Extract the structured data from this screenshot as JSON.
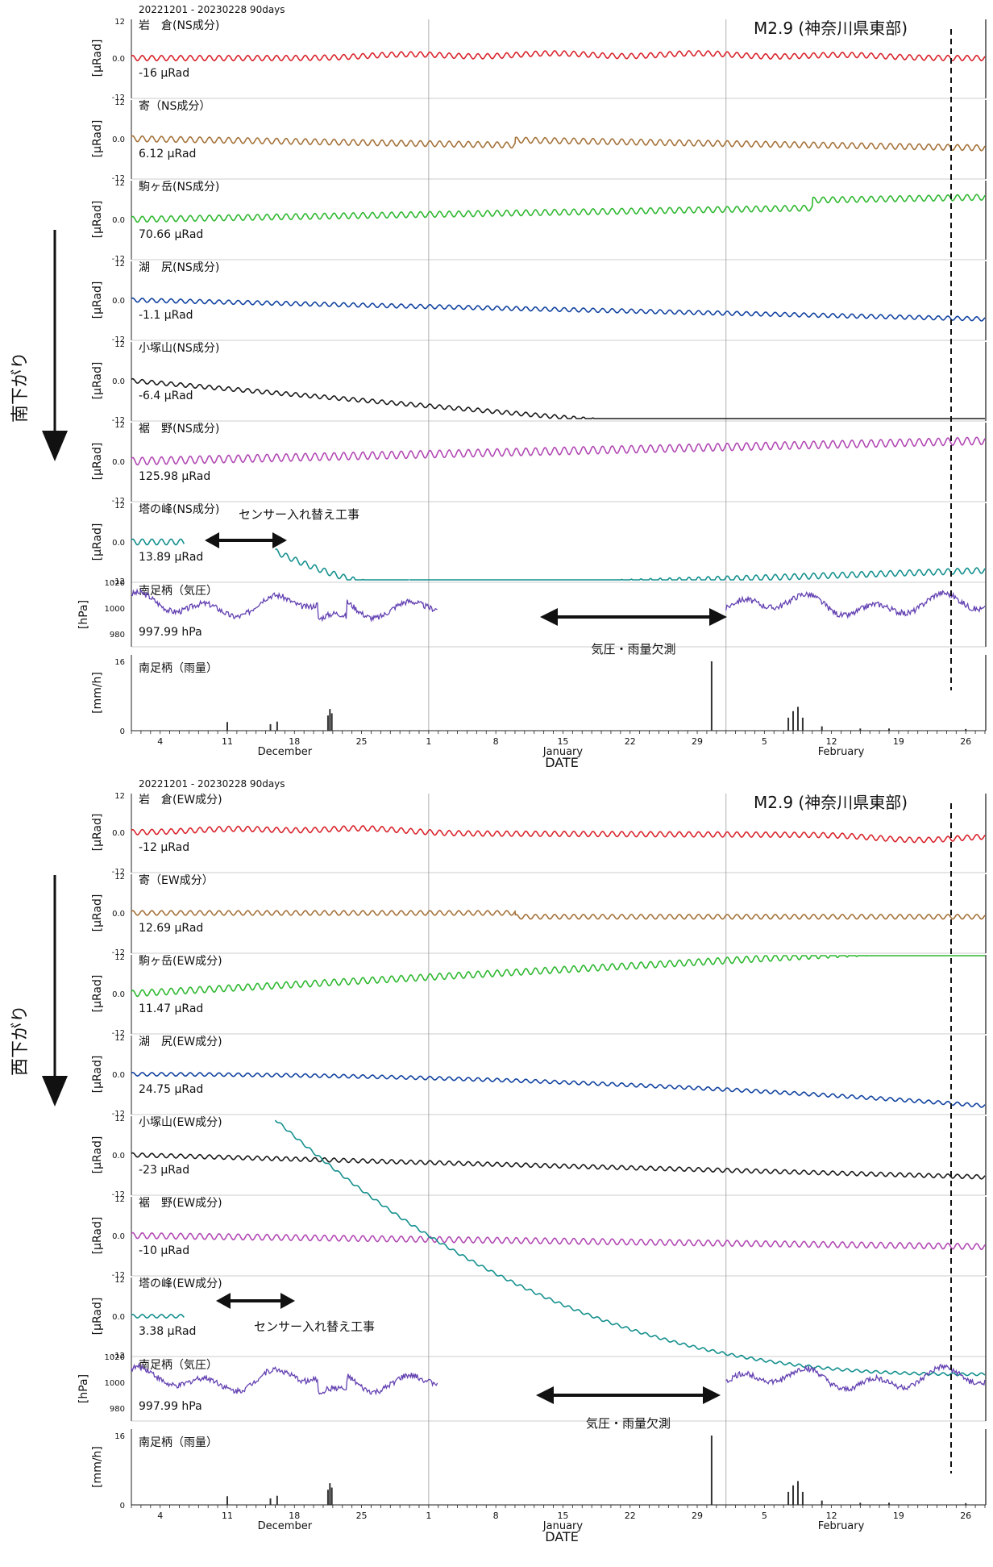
{
  "colors": {
    "red": "#d9242c",
    "brown": "#a5723a",
    "green": "#2eb830",
    "blue": "#1243a0",
    "black": "#1a1a1a",
    "magenta": "#b249b4",
    "teal": "#14908e",
    "purple": "#6442b2",
    "rain": "#333333",
    "axis": "#222222",
    "grid": "#b0b0b0"
  },
  "tilt_ticks": {
    "top": "12",
    "mid": "0.0",
    "bottom": "-12"
  },
  "tilt_unit": "[μRad]",
  "pressure_unit": "[hPa]",
  "rain_unit": "[mm/h]",
  "pressure_ticks": [
    "1020",
    "1000",
    "980"
  ],
  "rain_ticks": [
    "16",
    "0"
  ],
  "x_day_ticks": [
    "4",
    "11",
    "18",
    "25",
    "1",
    "8",
    "15",
    "22",
    "29",
    "5",
    "12",
    "19",
    "26"
  ],
  "x_month_labels": [
    "December",
    "January",
    "February"
  ],
  "x_axis_title": "DATE",
  "panels": [
    {
      "header": "20221201 - 20230228 90days",
      "event_label": "M2.9 (神奈川県東部)",
      "side_label": "南下がり",
      "gap_label": "気圧・雨量欠測",
      "sensor_note": "センサー入れ替え工事",
      "pressure": {
        "name": "南足柄（気圧）",
        "value": "997.99 hPa"
      },
      "rain": {
        "name": "南足柄（雨量）"
      },
      "tilt": [
        {
          "name": "岩　倉(NS成分)",
          "value": "-16 μRad",
          "color": "red"
        },
        {
          "name": "寄（NS成分）",
          "value": "6.12 μRad",
          "color": "brown"
        },
        {
          "name": "駒ヶ岳(NS成分)",
          "value": "70.66 μRad",
          "color": "green"
        },
        {
          "name": "湖　尻(NS成分)",
          "value": "-1.1 μRad",
          "color": "blue"
        },
        {
          "name": "小塚山(NS成分)",
          "value": "-6.4 μRad",
          "color": "black"
        },
        {
          "name": "裾　野(NS成分)",
          "value": "125.98 μRad",
          "color": "magenta"
        },
        {
          "name": "塔の峰(NS成分)",
          "value": "13.89 μRad",
          "color": "teal"
        }
      ]
    },
    {
      "header": "20221201 - 20230228 90days",
      "event_label": "M2.9 (神奈川県東部)",
      "side_label": "西下がり",
      "gap_label": "気圧・雨量欠測",
      "sensor_note": "センサー入れ替え工事",
      "pressure": {
        "name": "南足柄（気圧）",
        "value": "997.99 hPa"
      },
      "rain": {
        "name": "南足柄（雨量）"
      },
      "tilt": [
        {
          "name": "岩　倉(EW成分)",
          "value": "-12 μRad",
          "color": "red"
        },
        {
          "name": "寄（EW成分）",
          "value": "12.69 μRad",
          "color": "brown"
        },
        {
          "name": "駒ヶ岳(EW成分)",
          "value": "11.47 μRad",
          "color": "green"
        },
        {
          "name": "湖　尻(EW成分)",
          "value": "24.75 μRad",
          "color": "blue"
        },
        {
          "name": "小塚山(EW成分)",
          "value": "-23 μRad",
          "color": "black"
        },
        {
          "name": "裾　野(EW成分)",
          "value": "-10 μRad",
          "color": "magenta"
        },
        {
          "name": "塔の峰(EW成分)",
          "value": "3.38 μRad",
          "color": "teal"
        }
      ]
    }
  ],
  "chart_data": [
    {
      "type": "line",
      "title": "20221201 - 20230228 90days",
      "xlabel": "DATE",
      "x_range": [
        "2022-12-01",
        "2023-02-28"
      ],
      "event": {
        "label": "M2.9 (神奈川県東部)",
        "date": "2023-02-24"
      },
      "series": [
        {
          "name": "岩　倉(NS成分)",
          "unit": "μRad",
          "ylim": [
            -12,
            12
          ],
          "start": 0.0,
          "end": 0.0,
          "amp": 0.9,
          "bumps": [
            {
              "day": 30,
              "dy": 1.2
            },
            {
              "day": 45,
              "dy": 1.5
            },
            {
              "day": 60,
              "dy": 1.5
            },
            {
              "day": 75,
              "dy": 1.0
            }
          ]
        },
        {
          "name": "寄（NS成分）",
          "unit": "μRad",
          "ylim": [
            -12,
            12
          ],
          "start": 0.0,
          "end": -4.5,
          "amp": 1.0,
          "steps": [
            {
              "day": 41,
              "dy": 1.6
            }
          ]
        },
        {
          "name": "駒ヶ岳(NS成分)",
          "unit": "μRad",
          "ylim": [
            -12,
            12
          ],
          "start": 0.0,
          "end": 4.5,
          "amp": 1.0,
          "steps": [
            {
              "day": 72,
              "dy": 2.5
            }
          ]
        },
        {
          "name": "湖　尻(NS成分)",
          "unit": "μRad",
          "ylim": [
            -12,
            12
          ],
          "start": 0.0,
          "end": -6.0,
          "amp": 0.7
        },
        {
          "name": "小塚山(NS成分)",
          "unit": "μRad",
          "ylim": [
            -12,
            12
          ],
          "start": 0.0,
          "end": -23.0,
          "amp": 0.7
        },
        {
          "name": "裾　野(NS成分)",
          "unit": "μRad",
          "ylim": [
            -12,
            12
          ],
          "start": 0.0,
          "end": 6.5,
          "amp": 1.3
        },
        {
          "name": "塔の峰(NS成分)",
          "unit": "μRad",
          "ylim": [
            -12,
            12
          ],
          "segments": [
            {
              "x0": 1,
              "x1": 6.5,
              "y0": 0,
              "y1": 0
            },
            {
              "x0": 16,
              "x1": 30,
              "y0": -3,
              "y1": -15,
              "curve": 1.6
            },
            {
              "x0": 30,
              "x1": 90,
              "y0": -15,
              "y1": -9
            }
          ],
          "amp": 1.0
        },
        {
          "name": "南足柄（気圧）",
          "unit": "hPa",
          "ylim": [
            970,
            1020
          ],
          "gap": [
            33,
            63
          ],
          "mean": 1002,
          "amp": 9
        },
        {
          "name": "南足柄（雨量）",
          "unit": "mm/h",
          "ylim": [
            0,
            16
          ],
          "bars": [
            {
              "day": 11,
              "v": 2
            },
            {
              "day": 15.5,
              "v": 1.5
            },
            {
              "day": 16.2,
              "v": 2.1
            },
            {
              "day": 21.5,
              "v": 3.5
            },
            {
              "day": 21.7,
              "v": 5
            },
            {
              "day": 21.9,
              "v": 4
            },
            {
              "day": 61.5,
              "v": 16
            },
            {
              "day": 69.5,
              "v": 3
            },
            {
              "day": 70,
              "v": 4.5
            },
            {
              "day": 70.5,
              "v": 5.5
            },
            {
              "day": 71,
              "v": 3
            },
            {
              "day": 73,
              "v": 1
            },
            {
              "day": 77,
              "v": 0.5
            },
            {
              "day": 80,
              "v": 0.5
            },
            {
              "day": 88,
              "v": 0.4
            }
          ]
        }
      ]
    },
    {
      "type": "line",
      "title": "20221201 - 20230228 90days",
      "xlabel": "DATE",
      "x_range": [
        "2022-12-01",
        "2023-02-28"
      ],
      "event": {
        "label": "M2.9 (神奈川県東部)",
        "date": "2023-02-24"
      },
      "series": [
        {
          "name": "岩　倉(EW成分)",
          "unit": "μRad",
          "ylim": [
            -12,
            12
          ],
          "start": 0.0,
          "end": -1.0,
          "amp": 0.9,
          "bumps": [
            {
              "day": 12,
              "dy": 1.2
            },
            {
              "day": 25,
              "dy": 1.5
            },
            {
              "day": 83,
              "dy": -1.5
            }
          ]
        },
        {
          "name": "寄（EW成分）",
          "unit": "μRad",
          "ylim": [
            -12,
            12
          ],
          "start": 0.0,
          "end": 0.0,
          "amp": 0.8,
          "steps": [
            {
              "day": 41,
              "dy": -1.2
            }
          ]
        },
        {
          "name": "駒ヶ岳(EW成分)",
          "unit": "μRad",
          "ylim": [
            -12,
            12
          ],
          "start": 0.0,
          "end": 15.0,
          "amp": 1.1
        },
        {
          "name": "湖　尻(EW成分)",
          "unit": "μRad",
          "ylim": [
            -12,
            12
          ],
          "start": 0.0,
          "end": -10.0,
          "amp": 0.6,
          "curve": 2.0
        },
        {
          "name": "小塚山(EW成分)",
          "unit": "μRad",
          "ylim": [
            -12,
            12
          ],
          "start": 0.0,
          "end": -7.0,
          "amp": 0.7
        },
        {
          "name": "裾　野(EW成分)",
          "unit": "μRad",
          "ylim": [
            -12,
            12
          ],
          "start": 0.0,
          "end": -3.5,
          "amp": 1.0
        },
        {
          "name": "塔の峰(EW成分)",
          "unit": "μRad",
          "ylim": [
            -12,
            12
          ],
          "segments": [
            {
              "x0": 1,
              "x1": 6.5,
              "y0": 0,
              "y1": 0
            }
          ],
          "amp": 0.6,
          "overflow": {
            "x0": 16,
            "x1": 90,
            "y_top": 8,
            "curve": 2.5
          }
        },
        {
          "name": "南足柄（気圧）",
          "unit": "hPa",
          "ylim": [
            970,
            1020
          ],
          "gap": [
            33,
            63
          ],
          "mean": 1002,
          "amp": 9
        },
        {
          "name": "南足柄（雨量）",
          "unit": "mm/h",
          "ylim": [
            0,
            16
          ],
          "bars": [
            {
              "day": 11,
              "v": 2
            },
            {
              "day": 15.5,
              "v": 1.5
            },
            {
              "day": 16.2,
              "v": 2.1
            },
            {
              "day": 21.5,
              "v": 3.5
            },
            {
              "day": 21.7,
              "v": 5
            },
            {
              "day": 21.9,
              "v": 4
            },
            {
              "day": 61.5,
              "v": 16
            },
            {
              "day": 69.5,
              "v": 3
            },
            {
              "day": 70,
              "v": 4.5
            },
            {
              "day": 70.5,
              "v": 5.5
            },
            {
              "day": 71,
              "v": 3
            },
            {
              "day": 73,
              "v": 1
            },
            {
              "day": 77,
              "v": 0.5
            },
            {
              "day": 80,
              "v": 0.5
            },
            {
              "day": 88,
              "v": 0.4
            }
          ]
        }
      ]
    }
  ]
}
